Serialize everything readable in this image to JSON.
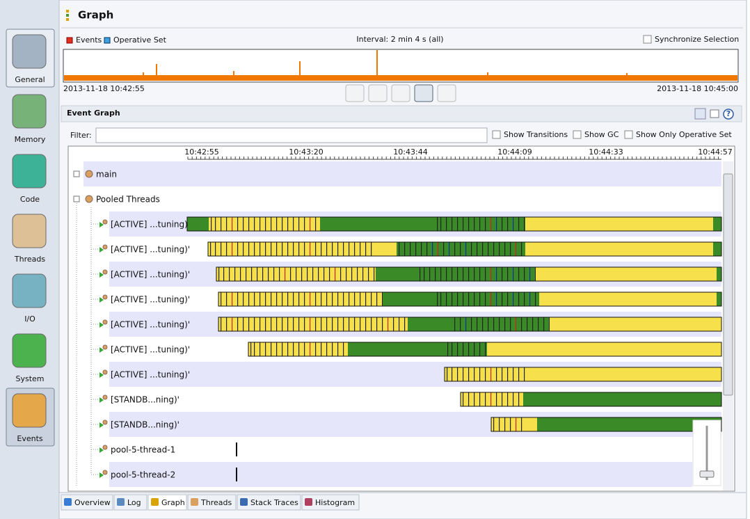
{
  "sidebar": {
    "items": [
      "General",
      "Memory",
      "Code",
      "Threads",
      "I/O",
      "System",
      "Events"
    ]
  },
  "header": {
    "title": "Graph"
  },
  "overview": {
    "legend": [
      "Events",
      "Operative Set"
    ],
    "interval": "Interval: 2 min 4 s (all)",
    "sync": "Synchronize Selection",
    "start": "2013-11-18 10:42:55",
    "end": "2013-11-18 10:45:00"
  },
  "event_graph": {
    "title": "Event Graph",
    "filter_label": "Filter:",
    "options": [
      "Show Transitions",
      "Show GC",
      "Show Only Operative Set"
    ],
    "time_labels": [
      "10:42:55",
      "10:43:20",
      "10:43:44",
      "10:44:09",
      "10:44:33",
      "10:44:57"
    ],
    "rows": [
      "main",
      "Pooled Threads",
      "[ACTIVE] ...tuning)'",
      "[ACTIVE] ...tuning)'",
      "[ACTIVE] ...tuning)'",
      "[ACTIVE] ...tuning)'",
      "[ACTIVE] ...tuning)'",
      "[ACTIVE] ...tuning)'",
      "[ACTIVE] ...tuning)'",
      "[STANDB...ning)'",
      "[STANDB...ning)'",
      "pool-5-thread-1",
      "pool-5-thread-2"
    ]
  },
  "tabs": [
    "Overview",
    "Log",
    "Graph",
    "Threads",
    "Stack Traces",
    "Histogram"
  ]
}
